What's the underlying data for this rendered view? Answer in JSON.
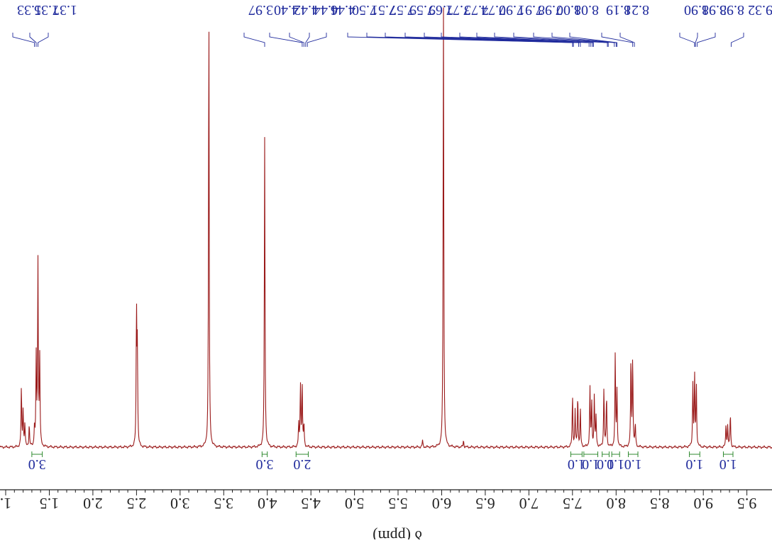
{
  "colors": {
    "spectrum": "#9a1a1a",
    "peak_labels": "#1f2a9c",
    "integration": "#2f8a2f",
    "axis": "#222222"
  },
  "chart_data": {
    "type": "line",
    "mirrored": true,
    "xlabel": "δ (ppm)",
    "ylabel": "",
    "xlim": [
      1.0,
      9.5
    ],
    "x_ticks": [
      {
        "value": 1.0,
        "label": "1."
      },
      {
        "value": 1.5,
        "label": "1.5"
      },
      {
        "value": 2.0,
        "label": "2.0"
      },
      {
        "value": 2.5,
        "label": "2.5"
      },
      {
        "value": 3.0,
        "label": "3.0"
      },
      {
        "value": 3.5,
        "label": "3.5"
      },
      {
        "value": 4.0,
        "label": "4.0"
      },
      {
        "value": 4.5,
        "label": "4.5"
      },
      {
        "value": 5.0,
        "label": "5.0"
      },
      {
        "value": 5.5,
        "label": "5.5"
      },
      {
        "value": 6.0,
        "label": "6.0"
      },
      {
        "value": 6.5,
        "label": "6.5"
      },
      {
        "value": 7.0,
        "label": "7.0"
      },
      {
        "value": 7.5,
        "label": "7.5"
      },
      {
        "value": 8.0,
        "label": "8.0"
      },
      {
        "value": 8.5,
        "label": "8.5"
      },
      {
        "value": 9.0,
        "label": "9.0"
      },
      {
        "value": 9.5,
        "label": "9.5"
      }
    ],
    "peaks": [
      {
        "ppm": 1.18,
        "height": 0.16
      },
      {
        "ppm": 1.2,
        "height": 0.1
      },
      {
        "ppm": 1.22,
        "height": 0.06
      },
      {
        "ppm": 1.27,
        "height": 0.06
      },
      {
        "ppm": 1.33,
        "height": 0.05
      },
      {
        "ppm": 1.35,
        "height": 0.24
      },
      {
        "ppm": 1.37,
        "height": 0.5
      },
      {
        "ppm": 1.39,
        "height": 0.24
      },
      {
        "ppm": 2.5,
        "height": 0.36
      },
      {
        "ppm": 2.51,
        "height": 0.26
      },
      {
        "ppm": 3.33,
        "height": 1.2
      },
      {
        "ppm": 3.97,
        "height": 0.84
      },
      {
        "ppm": 4.36,
        "height": 0.06
      },
      {
        "ppm": 4.38,
        "height": 0.17
      },
      {
        "ppm": 4.4,
        "height": 0.17
      },
      {
        "ppm": 4.42,
        "height": 0.06
      },
      {
        "ppm": 5.78,
        "height": 0.018
      },
      {
        "ppm": 6.02,
        "height": 1.2
      },
      {
        "ppm": 6.25,
        "height": 0.018
      },
      {
        "ppm": 7.5,
        "height": 0.14
      },
      {
        "ppm": 7.53,
        "height": 0.1
      },
      {
        "ppm": 7.56,
        "height": 0.14
      },
      {
        "ppm": 7.59,
        "height": 0.1
      },
      {
        "ppm": 7.7,
        "height": 0.16
      },
      {
        "ppm": 7.72,
        "height": 0.12
      },
      {
        "ppm": 7.75,
        "height": 0.14
      },
      {
        "ppm": 7.77,
        "height": 0.08
      },
      {
        "ppm": 7.86,
        "height": 0.16
      },
      {
        "ppm": 7.89,
        "height": 0.14
      },
      {
        "ppm": 7.99,
        "height": 0.25
      },
      {
        "ppm": 8.01,
        "height": 0.15
      },
      {
        "ppm": 8.17,
        "height": 0.24
      },
      {
        "ppm": 8.19,
        "height": 0.24
      },
      {
        "ppm": 8.22,
        "height": 0.06
      },
      {
        "ppm": 8.88,
        "height": 0.17
      },
      {
        "ppm": 8.9,
        "height": 0.19
      },
      {
        "ppm": 8.92,
        "height": 0.17
      },
      {
        "ppm": 9.26,
        "height": 0.06
      },
      {
        "ppm": 9.28,
        "height": 0.06
      },
      {
        "ppm": 9.31,
        "height": 0.09
      }
    ],
    "peak_labels": [
      {
        "ppm": 1.33,
        "label": "1.33"
      },
      {
        "ppm": 1.35,
        "label": "1.35"
      },
      {
        "ppm": 1.37,
        "label": "1.37"
      },
      {
        "ppm": 3.97,
        "label": "3.97"
      },
      {
        "ppm": 4.4,
        "label": "4.40"
      },
      {
        "ppm": 4.42,
        "label": "4.42"
      },
      {
        "ppm": 4.44,
        "label": "4.44"
      },
      {
        "ppm": 4.46,
        "label": "4.46"
      },
      {
        "ppm": 7.5,
        "label": "7.50"
      },
      {
        "ppm": 7.51,
        "label": "7.51"
      },
      {
        "ppm": 7.57,
        "label": "7.57"
      },
      {
        "ppm": 7.59,
        "label": "7.59"
      },
      {
        "ppm": 7.69,
        "label": "7.69"
      },
      {
        "ppm": 7.71,
        "label": "7.71"
      },
      {
        "ppm": 7.73,
        "label": "7.73"
      },
      {
        "ppm": 7.74,
        "label": "7.74"
      },
      {
        "ppm": 7.9,
        "label": "7.90"
      },
      {
        "ppm": 7.91,
        "label": "7.91"
      },
      {
        "ppm": 7.98,
        "label": "7.98"
      },
      {
        "ppm": 8.0,
        "label": "8.00"
      },
      {
        "ppm": 8.01,
        "label": "8.01"
      },
      {
        "ppm": 8.19,
        "label": "8.19"
      },
      {
        "ppm": 8.21,
        "label": "8.21"
      },
      {
        "ppm": 8.9,
        "label": "8.90"
      },
      {
        "ppm": 8.91,
        "label": "8.91"
      },
      {
        "ppm": 8.93,
        "label": "8.93"
      },
      {
        "ppm": 9.32,
        "label": "9.32"
      }
    ],
    "integrations": [
      {
        "from": 1.3,
        "to": 1.42,
        "value": "3.0"
      },
      {
        "from": 3.94,
        "to": 4.0,
        "value": "3.0"
      },
      {
        "from": 4.33,
        "to": 4.47,
        "value": "2.0"
      },
      {
        "from": 7.48,
        "to": 7.61,
        "value": "1.0"
      },
      {
        "from": 7.63,
        "to": 7.79,
        "value": "1.0"
      },
      {
        "from": 7.84,
        "to": 7.92,
        "value": "1.0"
      },
      {
        "from": 7.95,
        "to": 8.04,
        "value": "1.0"
      },
      {
        "from": 8.14,
        "to": 8.25,
        "value": "1.0"
      },
      {
        "from": 8.84,
        "to": 8.96,
        "value": "1.0"
      },
      {
        "from": 9.23,
        "to": 9.34,
        "value": "1.0"
      }
    ]
  }
}
